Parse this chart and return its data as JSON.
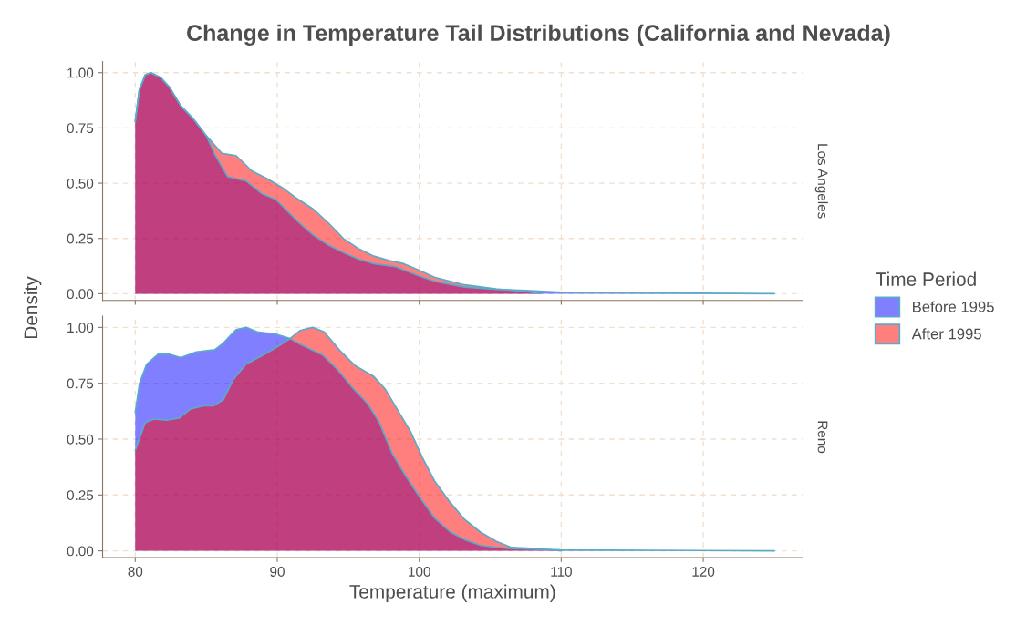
{
  "chart_data": [
    {
      "type": "area",
      "title": "Change in Temperature Tail Distributions (California and Nevada)",
      "ylabel": "Density",
      "annotations": [
        "Los Angeles"
      ],
      "legend": "right",
      "legend_title": "Time Period",
      "tick_labels": "y",
      "grid": true,
      "xlim": [
        77.7,
        127
      ],
      "xticks": [
        80,
        90,
        100,
        110,
        120
      ],
      "ylim": [
        -0.03,
        1.05
      ],
      "yticks": [
        {
          "value": 0,
          "label": "0.00"
        },
        {
          "value": 0.25,
          "label": "0.25"
        },
        {
          "value": 0.5,
          "label": "0.50"
        },
        {
          "value": 0.75,
          "label": "0.75"
        },
        {
          "value": 1,
          "label": "1.00"
        }
      ],
      "series": [
        {
          "name": "Before 1995",
          "color": "#7f7fff",
          "x": [
            80,
            80.28,
            80.7,
            81.1,
            81.8,
            82.4,
            83.2,
            84.1,
            85.0,
            85.6,
            86.5,
            87.8,
            88.9,
            89.9,
            91.4,
            92.5,
            93.6,
            94.7,
            95.7,
            96.8,
            98.3,
            100,
            101.1,
            103.2,
            105.4,
            107.5,
            110,
            115,
            125
          ],
          "values": [
            0.78,
            0.92,
            0.99,
            1.0,
            0.977,
            0.935,
            0.85,
            0.79,
            0.715,
            0.63,
            0.53,
            0.51,
            0.453,
            0.426,
            0.33,
            0.267,
            0.22,
            0.185,
            0.157,
            0.136,
            0.123,
            0.08,
            0.056,
            0.03,
            0.02,
            0.015,
            0.006,
            0.004,
            0.0
          ]
        },
        {
          "name": "After 1995",
          "color": "#ff7f7f",
          "x": [
            80,
            80.28,
            80.7,
            81.1,
            81.8,
            82.4,
            83.2,
            84.1,
            85.0,
            86.1,
            87.1,
            88.2,
            89.3,
            90.35,
            91.4,
            92.5,
            93.6,
            94.7,
            95.7,
            96.8,
            97.9,
            98.9,
            100,
            101.1,
            103.2,
            105.4,
            107.5,
            108.5
          ],
          "values": [
            0.78,
            0.92,
            0.99,
            1.0,
            0.977,
            0.935,
            0.85,
            0.79,
            0.715,
            0.635,
            0.625,
            0.556,
            0.52,
            0.48,
            0.43,
            0.384,
            0.32,
            0.247,
            0.205,
            0.17,
            0.15,
            0.136,
            0.106,
            0.074,
            0.04,
            0.022,
            0.01,
            0.0
          ]
        }
      ]
    },
    {
      "type": "area",
      "xlabel": "Temperature (maximum)",
      "annotations": [
        "Reno"
      ],
      "grid": true,
      "xlim": [
        77.7,
        127
      ],
      "xticks": [
        80,
        90,
        100,
        110,
        120
      ],
      "ylim": [
        -0.03,
        1.05
      ],
      "yticks": [
        {
          "value": 0,
          "label": "0.00"
        },
        {
          "value": 0.25,
          "label": "0.25"
        },
        {
          "value": 0.5,
          "label": "0.50"
        },
        {
          "value": 0.75,
          "label": "0.75"
        },
        {
          "value": 1,
          "label": "1.00"
        }
      ],
      "series": [
        {
          "color": "#7f7fff",
          "x": [
            80,
            80.3,
            80.8,
            81.6,
            82.4,
            83.2,
            84.3,
            85.6,
            86.2,
            87.1,
            87.8,
            88.6,
            89.9,
            90.9,
            91.6,
            93.2,
            94.3,
            95.3,
            96.4,
            97.2,
            98.1,
            99,
            100,
            101.1,
            102.2,
            103.2,
            104.3,
            105.4,
            106.5,
            110,
            125
          ],
          "values": [
            0.62,
            0.75,
            0.835,
            0.88,
            0.88,
            0.865,
            0.89,
            0.9,
            0.93,
            0.99,
            1.0,
            0.98,
            0.97,
            0.95,
            0.925,
            0.876,
            0.807,
            0.73,
            0.656,
            0.573,
            0.435,
            0.34,
            0.243,
            0.146,
            0.084,
            0.05,
            0.025,
            0.015,
            0.01,
            0.004,
            0.0
          ]
        },
        {
          "color": "#ff7f7f",
          "x": [
            80,
            80.7,
            81.3,
            82.2,
            83.1,
            83.9,
            84.8,
            85.5,
            86.2,
            86.9,
            87.8,
            89.0,
            90.1,
            90.9,
            91.6,
            92.5,
            93.3,
            94.4,
            95.5,
            96.8,
            97.6,
            98.5,
            99.4,
            100.2,
            101.1,
            102.2,
            103.2,
            104.3,
            105.4,
            106.5,
            108.2,
            110
          ],
          "values": [
            0.45,
            0.573,
            0.59,
            0.585,
            0.594,
            0.635,
            0.649,
            0.649,
            0.676,
            0.766,
            0.835,
            0.876,
            0.917,
            0.95,
            0.986,
            1.0,
            0.98,
            0.897,
            0.828,
            0.78,
            0.724,
            0.628,
            0.532,
            0.42,
            0.31,
            0.215,
            0.14,
            0.084,
            0.043,
            0.015,
            0.01,
            0.0
          ]
        }
      ]
    }
  ]
}
